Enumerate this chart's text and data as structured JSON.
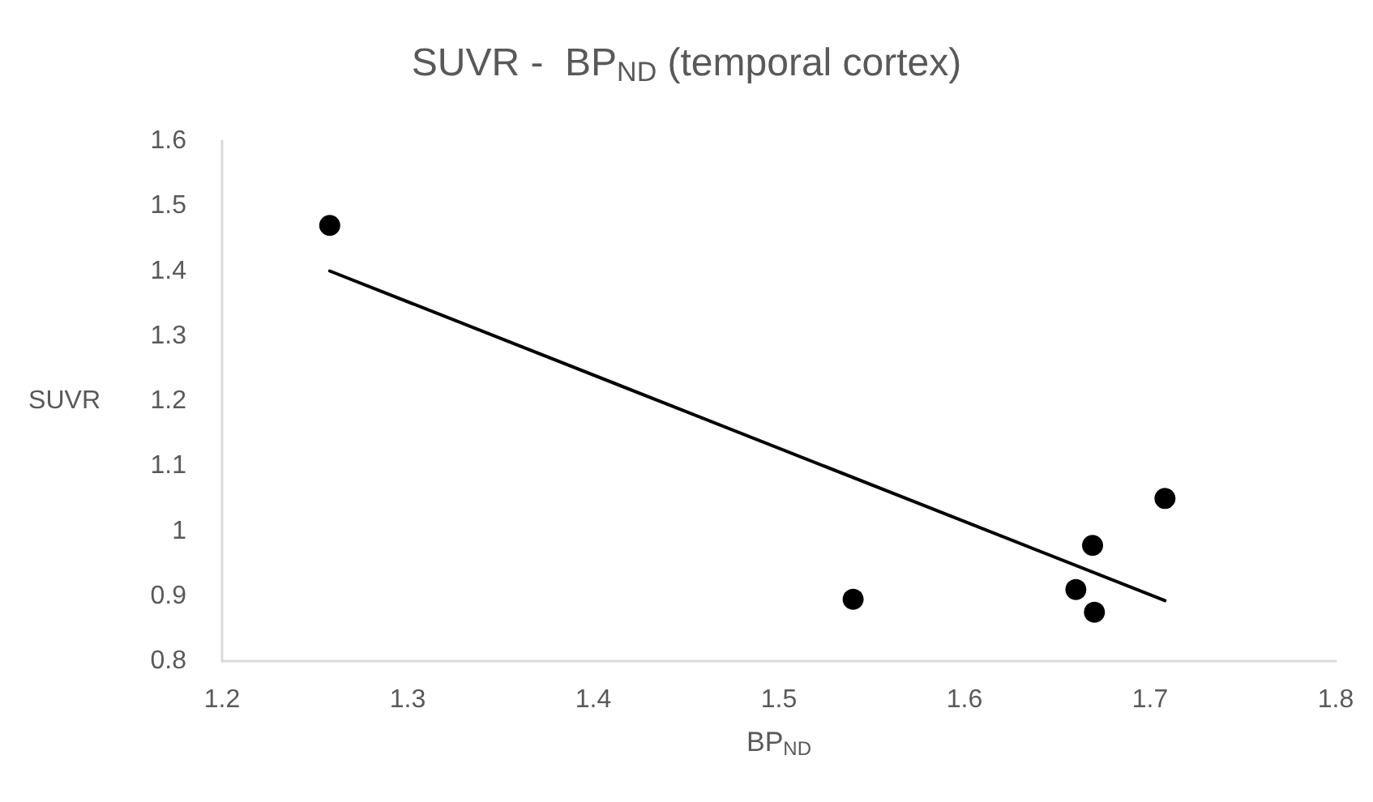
{
  "chart_data": {
    "type": "scatter",
    "title": "SUVR -  BP$_{ND}$ (temporal cortex)",
    "xlabel": "BP$_{ND}$",
    "ylabel": "SUVR",
    "series": [
      {
        "color": "#000000",
        "marker": "circle",
        "x": [
          1.258,
          1.54,
          1.66,
          1.67,
          1.669,
          1.708
        ],
        "values": [
          1.47,
          0.895,
          0.91,
          0.875,
          0.978,
          1.05
        ]
      },
      {
        "type": "line",
        "color": "#000000",
        "marker": "none",
        "line_style": "solid",
        "x": [
          1.258,
          1.708
        ],
        "values": [
          1.4,
          0.893
        ]
      }
    ],
    "xlim": [
      1.2,
      1.8
    ],
    "xticks": [
      1.2,
      1.3,
      1.4,
      1.5,
      1.6,
      1.7,
      1.8
    ],
    "ylim": [
      0.8,
      1.6
    ],
    "yticks": [
      0.8,
      0.9,
      1,
      1.1,
      1.2,
      1.3,
      1.4,
      1.5,
      1.6
    ],
    "grid": false
  }
}
